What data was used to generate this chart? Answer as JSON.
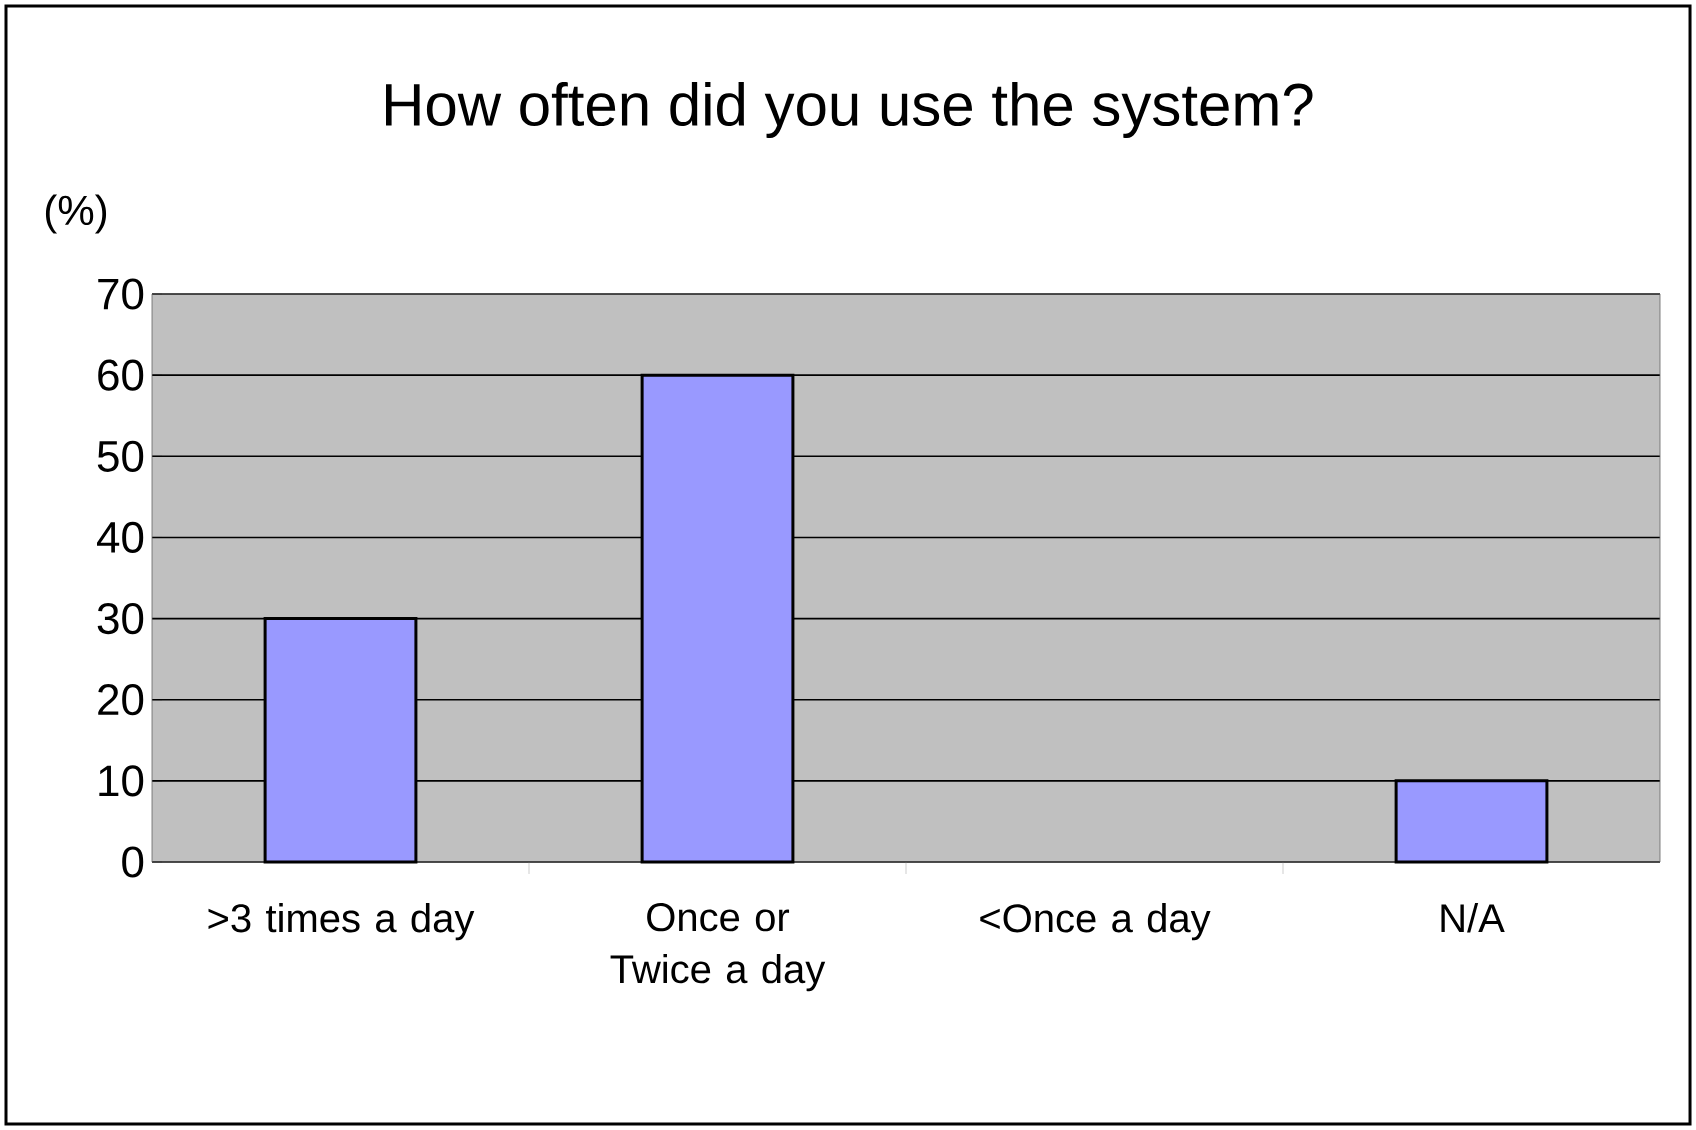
{
  "chart_data": {
    "type": "bar",
    "title": "How often did you use the system?",
    "ylabel": "(%)",
    "categories": [
      ">3 times a day",
      "Once or Twice a day",
      "<Once a day",
      "N/A"
    ],
    "values": [
      30,
      60,
      0,
      10
    ],
    "color": "#9999ff",
    "ylim": [
      0,
      70
    ],
    "yticks": [
      0,
      10,
      20,
      30,
      40,
      50,
      60,
      70
    ],
    "grid": "y"
  }
}
